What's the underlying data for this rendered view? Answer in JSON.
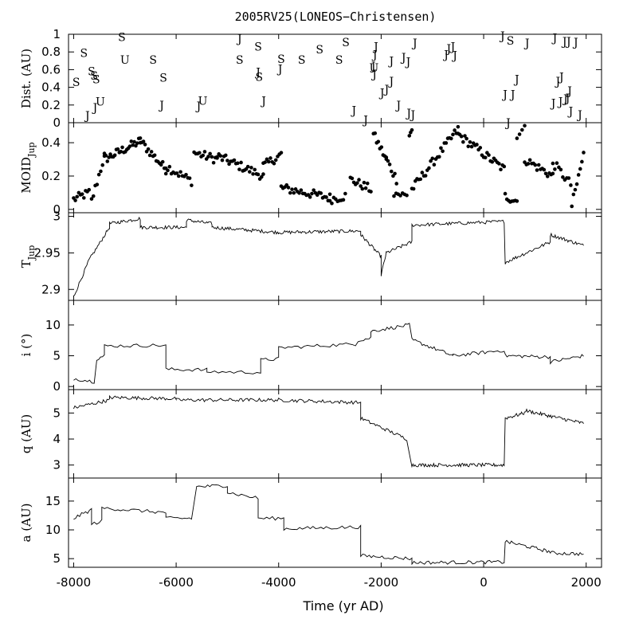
{
  "chart_data": {
    "type": "line",
    "title": "2005RV25(LONEOS−Christensen)",
    "xlabel": "Time (yr AD)",
    "xlim": [
      -8100,
      2300
    ],
    "xticks": [
      "-8000",
      "-6000",
      "-4000",
      "-2000",
      "0",
      "2000"
    ],
    "xtick_values": [
      -8000,
      -6000,
      -4000,
      -2000,
      0,
      2000
    ],
    "panels": [
      {
        "key": "dist",
        "ylabel": "Dist. (AU)",
        "ylim": [
          0,
          1
        ],
        "kind": "letters",
        "yticks": [
          0,
          0.2,
          0.4,
          0.6,
          0.8,
          1
        ],
        "ytick_labels": [
          "0",
          "0.2",
          "0.4",
          "0.6",
          "0.8",
          "1"
        ],
        "letters": [
          {
            "l": "S",
            "x": -7950,
            "y": 0.46
          },
          {
            "l": "S",
            "x": -7800,
            "y": 0.79
          },
          {
            "l": "J",
            "x": -7730,
            "y": 0.08
          },
          {
            "l": "S",
            "x": -7650,
            "y": 0.58
          },
          {
            "l": "S",
            "x": -7600,
            "y": 0.53
          },
          {
            "l": "S",
            "x": -7560,
            "y": 0.49
          },
          {
            "l": "J",
            "x": -7580,
            "y": 0.17
          },
          {
            "l": "U",
            "x": -7480,
            "y": 0.24
          },
          {
            "l": "S",
            "x": -7060,
            "y": 0.97
          },
          {
            "l": "U",
            "x": -7000,
            "y": 0.71
          },
          {
            "l": "S",
            "x": -6450,
            "y": 0.71
          },
          {
            "l": "S",
            "x": -6250,
            "y": 0.51
          },
          {
            "l": "J",
            "x": -6280,
            "y": 0.2
          },
          {
            "l": "U",
            "x": -5480,
            "y": 0.25
          },
          {
            "l": "J",
            "x": -5560,
            "y": 0.19
          },
          {
            "l": "J",
            "x": -4760,
            "y": 0.95
          },
          {
            "l": "S",
            "x": -4760,
            "y": 0.71
          },
          {
            "l": "S",
            "x": -4400,
            "y": 0.86
          },
          {
            "l": "J",
            "x": -4400,
            "y": 0.57
          },
          {
            "l": "S",
            "x": -4380,
            "y": 0.52
          },
          {
            "l": "J",
            "x": -4290,
            "y": 0.25
          },
          {
            "l": "S",
            "x": -3950,
            "y": 0.72
          },
          {
            "l": "J",
            "x": -3970,
            "y": 0.61
          },
          {
            "l": "S",
            "x": -3550,
            "y": 0.71
          },
          {
            "l": "S",
            "x": -3200,
            "y": 0.83
          },
          {
            "l": "S",
            "x": -2820,
            "y": 0.71
          },
          {
            "l": "S",
            "x": -2690,
            "y": 0.91
          },
          {
            "l": "J",
            "x": -2530,
            "y": 0.14
          },
          {
            "l": "J",
            "x": -2300,
            "y": 0.03
          },
          {
            "l": "J",
            "x": -2100,
            "y": 0.86
          },
          {
            "l": "J",
            "x": -2120,
            "y": 0.77
          },
          {
            "l": "J",
            "x": -2150,
            "y": 0.64
          },
          {
            "l": "U",
            "x": -2140,
            "y": 0.62
          },
          {
            "l": "J",
            "x": -2130,
            "y": 0.55
          },
          {
            "l": "J",
            "x": -1980,
            "y": 0.34
          },
          {
            "l": "J",
            "x": -1890,
            "y": 0.38
          },
          {
            "l": "J",
            "x": -1800,
            "y": 0.47
          },
          {
            "l": "J",
            "x": -1800,
            "y": 0.7
          },
          {
            "l": "J",
            "x": -1660,
            "y": 0.2
          },
          {
            "l": "J",
            "x": -1560,
            "y": 0.74
          },
          {
            "l": "J",
            "x": -1470,
            "y": 0.69
          },
          {
            "l": "J",
            "x": -1460,
            "y": 0.11
          },
          {
            "l": "J",
            "x": -1380,
            "y": 0.09
          },
          {
            "l": "J",
            "x": -1340,
            "y": 0.9
          },
          {
            "l": "J",
            "x": -730,
            "y": 0.77
          },
          {
            "l": "J",
            "x": -680,
            "y": 0.84
          },
          {
            "l": "J",
            "x": -600,
            "y": 0.86
          },
          {
            "l": "J",
            "x": -560,
            "y": 0.76
          },
          {
            "l": "J",
            "x": 370,
            "y": 0.98
          },
          {
            "l": "J",
            "x": 420,
            "y": 0.32
          },
          {
            "l": "S",
            "x": 520,
            "y": 0.93
          },
          {
            "l": "J",
            "x": 570,
            "y": 0.32
          },
          {
            "l": "J",
            "x": 650,
            "y": 0.49
          },
          {
            "l": "J",
            "x": 480,
            "y": 0.0
          },
          {
            "l": "J",
            "x": 850,
            "y": 0.9
          },
          {
            "l": "J",
            "x": 1390,
            "y": 0.96
          },
          {
            "l": "J",
            "x": 1360,
            "y": 0.22
          },
          {
            "l": "J",
            "x": 1450,
            "y": 0.47
          },
          {
            "l": "J",
            "x": 1500,
            "y": 0.24
          },
          {
            "l": "J",
            "x": 1520,
            "y": 0.52
          },
          {
            "l": "J",
            "x": 1580,
            "y": 0.92
          },
          {
            "l": "J",
            "x": 1600,
            "y": 0.27
          },
          {
            "l": "J",
            "x": 1640,
            "y": 0.28
          },
          {
            "l": "J",
            "x": 1660,
            "y": 0.92
          },
          {
            "l": "J",
            "x": 1680,
            "y": 0.36
          },
          {
            "l": "J",
            "x": 1700,
            "y": 0.13
          },
          {
            "l": "J",
            "x": 1800,
            "y": 0.91
          },
          {
            "l": "J",
            "x": 1880,
            "y": 0.09
          }
        ]
      },
      {
        "key": "moid",
        "ylabel": "MOID",
        "ylabel_sub": "Jup",
        "ylim": [
          -0.02,
          0.52
        ],
        "kind": "scatter",
        "yticks": [
          0,
          0.2,
          0.4
        ],
        "ytick_labels": [
          "0",
          "0.2",
          "0.4"
        ],
        "segments": [
          {
            "x0": -8000,
            "x1": -7700,
            "y0": 0.06,
            "y1": 0.1,
            "n": 10
          },
          {
            "x0": -7650,
            "x1": -7400,
            "y0": 0.05,
            "y1": 0.32,
            "n": 8
          },
          {
            "x0": -7400,
            "x1": -6700,
            "y0": 0.3,
            "y1": 0.41,
            "n": 25
          },
          {
            "x0": -6700,
            "x1": -6200,
            "y0": 0.41,
            "y1": 0.24,
            "n": 17
          },
          {
            "x0": -6200,
            "x1": -5700,
            "y0": 0.26,
            "y1": 0.17,
            "n": 15
          },
          {
            "x0": -5650,
            "x1": -5200,
            "y0": 0.34,
            "y1": 0.3,
            "n": 14
          },
          {
            "x0": -5200,
            "x1": -4300,
            "y0": 0.32,
            "y1": 0.2,
            "n": 28
          },
          {
            "x0": -4300,
            "x1": -3950,
            "y0": 0.26,
            "y1": 0.33,
            "n": 11
          },
          {
            "x0": -3950,
            "x1": -3000,
            "y0": 0.13,
            "y1": 0.07,
            "n": 28
          },
          {
            "x0": -3000,
            "x1": -2700,
            "y0": 0.06,
            "y1": 0.08,
            "n": 9
          },
          {
            "x0": -2600,
            "x1": -2200,
            "y0": 0.18,
            "y1": 0.12,
            "n": 13
          },
          {
            "x0": -2150,
            "x1": -1900,
            "y0": 0.45,
            "y1": 0.3,
            "n": 9
          },
          {
            "x0": -1900,
            "x1": -1700,
            "y0": 0.3,
            "y1": 0.18,
            "n": 7
          },
          {
            "x0": -1750,
            "x1": -1500,
            "y0": 0.1,
            "y1": 0.08,
            "n": 7
          },
          {
            "x0": -1450,
            "x1": -1400,
            "y0": 0.45,
            "y1": 0.48,
            "n": 3
          },
          {
            "x0": -1400,
            "x1": -500,
            "y0": 0.12,
            "y1": 0.48,
            "n": 28
          },
          {
            "x0": -500,
            "x1": 400,
            "y0": 0.45,
            "y1": 0.24,
            "n": 28
          },
          {
            "x0": 420,
            "x1": 650,
            "y0": 0.08,
            "y1": 0.05,
            "n": 8
          },
          {
            "x0": 650,
            "x1": 800,
            "y0": 0.45,
            "y1": 0.48,
            "n": 4
          },
          {
            "x0": 800,
            "x1": 1350,
            "y0": 0.3,
            "y1": 0.2,
            "n": 17
          },
          {
            "x0": 1350,
            "x1": 1700,
            "y0": 0.28,
            "y1": 0.15,
            "n": 10
          },
          {
            "x0": 1720,
            "x1": 1950,
            "y0": 0.02,
            "y1": 0.33,
            "n": 8
          }
        ]
      },
      {
        "key": "tjup",
        "ylabel": "T",
        "ylabel_sub": "Jup",
        "ylim": [
          2.885,
          3.005
        ],
        "kind": "line",
        "yticks": [
          2.9,
          2.95,
          3
        ],
        "ytick_labels": [
          "2.9",
          "2.95",
          "3"
        ],
        "segments": [
          {
            "x0": -8000,
            "x1": -7700,
            "y0": 2.89,
            "y1": 2.94,
            "n": 15
          },
          {
            "x0": -7700,
            "x1": -7300,
            "y0": 2.94,
            "y1": 2.985,
            "n": 20
          },
          {
            "x0": -7300,
            "x1": -6700,
            "y0": 2.99,
            "y1": 2.997,
            "n": 30
          },
          {
            "x0": -6700,
            "x1": -5800,
            "y0": 2.985,
            "y1": 2.985,
            "n": 45
          },
          {
            "x0": -5800,
            "x1": -5300,
            "y0": 2.995,
            "y1": 2.99,
            "n": 25
          },
          {
            "x0": -5300,
            "x1": -4000,
            "y0": 2.985,
            "y1": 2.978,
            "n": 60
          },
          {
            "x0": -4000,
            "x1": -2400,
            "y0": 2.978,
            "y1": 2.98,
            "n": 70
          },
          {
            "x0": -2400,
            "x1": -2000,
            "y0": 2.975,
            "y1": 2.945,
            "n": 25
          },
          {
            "x0": -2000,
            "x1": -1900,
            "y0": 2.92,
            "y1": 2.95,
            "n": 8
          },
          {
            "x0": -1900,
            "x1": -1400,
            "y0": 2.95,
            "y1": 2.965,
            "n": 25
          },
          {
            "x0": -1400,
            "x1": 400,
            "y0": 2.988,
            "y1": 2.993,
            "n": 70
          },
          {
            "x0": 420,
            "x1": 1300,
            "y0": 2.937,
            "y1": 2.965,
            "n": 40
          },
          {
            "x0": 1300,
            "x1": 1950,
            "y0": 2.975,
            "y1": 2.96,
            "n": 35
          }
        ]
      },
      {
        "key": "incl",
        "ylabel": "i (°)",
        "ylim": [
          -0.5,
          14
        ],
        "kind": "line",
        "yticks": [
          0,
          5,
          10
        ],
        "ytick_labels": [
          "0",
          "5",
          "10"
        ],
        "segments": [
          {
            "x0": -8000,
            "x1": -7600,
            "y0": 1.3,
            "y1": 0.8,
            "n": 10
          },
          {
            "x0": -7550,
            "x1": -7400,
            "y0": 4.5,
            "y1": 5.0,
            "n": 5
          },
          {
            "x0": -7400,
            "x1": -6200,
            "y0": 6.6,
            "y1": 6.7,
            "n": 20
          },
          {
            "x0": -6200,
            "x1": -5400,
            "y0": 2.8,
            "y1": 2.7,
            "n": 15
          },
          {
            "x0": -5400,
            "x1": -4350,
            "y0": 2.4,
            "y1": 2.3,
            "n": 15
          },
          {
            "x0": -4350,
            "x1": -4000,
            "y0": 4.3,
            "y1": 4.5,
            "n": 8
          },
          {
            "x0": -4000,
            "x1": -2500,
            "y0": 6.3,
            "y1": 6.9,
            "n": 25
          },
          {
            "x0": -2450,
            "x1": -2200,
            "y0": 7.5,
            "y1": 7.9,
            "n": 8
          },
          {
            "x0": -2200,
            "x1": -1450,
            "y0": 9.0,
            "y1": 10.0,
            "n": 20
          },
          {
            "x0": -1400,
            "x1": -600,
            "y0": 7.6,
            "y1": 5.0,
            "n": 25
          },
          {
            "x0": -600,
            "x1": 400,
            "y0": 5.0,
            "y1": 5.9,
            "n": 25
          },
          {
            "x0": 420,
            "x1": 1300,
            "y0": 5.0,
            "y1": 4.8,
            "n": 25
          },
          {
            "x0": 1300,
            "x1": 1950,
            "y0": 4.0,
            "y1": 5.0,
            "n": 20
          }
        ]
      },
      {
        "key": "q",
        "ylabel": "q (AU)",
        "ylim": [
          2.5,
          5.9
        ],
        "kind": "line",
        "yticks": [
          3,
          4,
          5
        ],
        "ytick_labels": [
          "3",
          "4",
          "5"
        ],
        "segments": [
          {
            "x0": -8000,
            "x1": -7300,
            "y0": 5.2,
            "y1": 5.5,
            "n": 30
          },
          {
            "x0": -7300,
            "x1": -6000,
            "y0": 5.6,
            "y1": 5.55,
            "n": 50
          },
          {
            "x0": -6000,
            "x1": -4000,
            "y0": 5.5,
            "y1": 5.5,
            "n": 70
          },
          {
            "x0": -4000,
            "x1": -2400,
            "y0": 5.5,
            "y1": 5.4,
            "n": 55
          },
          {
            "x0": -2400,
            "x1": -1500,
            "y0": 4.8,
            "y1": 4.0,
            "n": 35
          },
          {
            "x0": -1400,
            "x1": 400,
            "y0": 3.0,
            "y1": 3.0,
            "n": 90
          },
          {
            "x0": 420,
            "x1": 800,
            "y0": 4.8,
            "y1": 5.0,
            "n": 20
          },
          {
            "x0": 800,
            "x1": 1950,
            "y0": 5.1,
            "y1": 4.6,
            "n": 60
          }
        ]
      },
      {
        "key": "a",
        "ylabel": "a (AU)",
        "ylim": [
          3.5,
          19
        ],
        "kind": "line",
        "yticks": [
          5,
          10,
          15
        ],
        "ytick_labels": [
          "5",
          "10",
          "15"
        ],
        "segments": [
          {
            "x0": -8000,
            "x1": -7650,
            "y0": 12.0,
            "y1": 13.5,
            "n": 10
          },
          {
            "x0": -7650,
            "x1": -7450,
            "y0": 11.0,
            "y1": 11.5,
            "n": 5
          },
          {
            "x0": -7450,
            "x1": -6200,
            "y0": 13.8,
            "y1": 13.0,
            "n": 25
          },
          {
            "x0": -6200,
            "x1": -5700,
            "y0": 12.0,
            "y1": 12.0,
            "n": 12
          },
          {
            "x0": -5600,
            "x1": -5000,
            "y0": 17.5,
            "y1": 17.7,
            "n": 15
          },
          {
            "x0": -5000,
            "x1": -4400,
            "y0": 16.5,
            "y1": 15.5,
            "n": 12
          },
          {
            "x0": -4400,
            "x1": -3900,
            "y0": 12.0,
            "y1": 12.0,
            "n": 10
          },
          {
            "x0": -3900,
            "x1": -2400,
            "y0": 10.2,
            "y1": 10.5,
            "n": 30
          },
          {
            "x0": -2400,
            "x1": -1400,
            "y0": 5.5,
            "y1": 5.0,
            "n": 25
          },
          {
            "x0": -1400,
            "x1": 400,
            "y0": 4.3,
            "y1": 4.4,
            "n": 45
          },
          {
            "x0": 420,
            "x1": 1300,
            "y0": 8.0,
            "y1": 6.2,
            "n": 30
          },
          {
            "x0": 1300,
            "x1": 1950,
            "y0": 6.0,
            "y1": 5.8,
            "n": 20
          }
        ]
      }
    ]
  }
}
